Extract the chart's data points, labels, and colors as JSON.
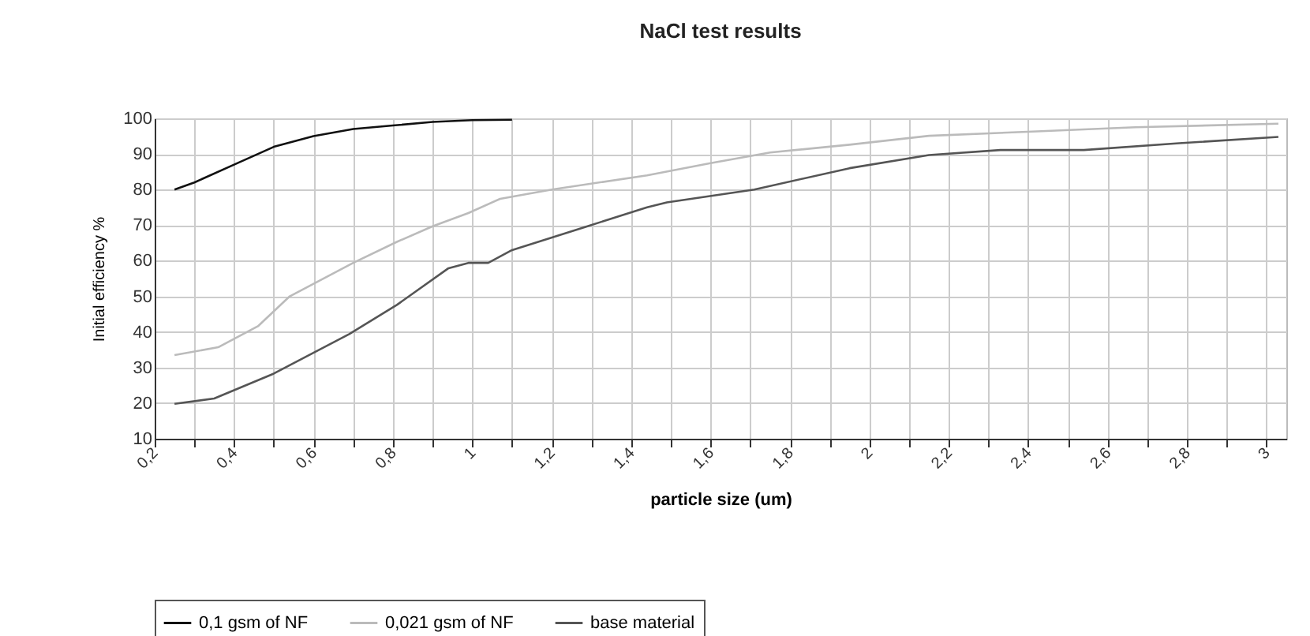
{
  "chart_data": {
    "type": "line",
    "title": "NaCl test results",
    "xlabel": "particle size (um)",
    "ylabel": "Initial efficiency %",
    "xlim": [
      0.2,
      3.05
    ],
    "ylim": [
      10,
      100
    ],
    "xticks": [
      {
        "value": 0.2,
        "label": "0,2"
      },
      {
        "value": 0.3,
        "label": null
      },
      {
        "value": 0.4,
        "label": "0,4"
      },
      {
        "value": 0.5,
        "label": null
      },
      {
        "value": 0.6,
        "label": "0,6"
      },
      {
        "value": 0.7,
        "label": null
      },
      {
        "value": 0.8,
        "label": "0,8"
      },
      {
        "value": 0.9,
        "label": null
      },
      {
        "value": 1,
        "label": "1"
      },
      {
        "value": 1.1,
        "label": null
      },
      {
        "value": 1.2,
        "label": "1,2"
      },
      {
        "value": 1.3,
        "label": null
      },
      {
        "value": 1.4,
        "label": "1,4"
      },
      {
        "value": 1.5,
        "label": null
      },
      {
        "value": 1.6,
        "label": "1,6"
      },
      {
        "value": 1.7,
        "label": null
      },
      {
        "value": 1.8,
        "label": "1,8"
      },
      {
        "value": 1.9,
        "label": null
      },
      {
        "value": 2,
        "label": "2"
      },
      {
        "value": 2.1,
        "label": null
      },
      {
        "value": 2.2,
        "label": "2,2"
      },
      {
        "value": 2.3,
        "label": null
      },
      {
        "value": 2.4,
        "label": "2,4"
      },
      {
        "value": 2.5,
        "label": null
      },
      {
        "value": 2.6,
        "label": "2,6"
      },
      {
        "value": 2.7,
        "label": null
      },
      {
        "value": 2.8,
        "label": "2,8"
      },
      {
        "value": 2.9,
        "label": null
      },
      {
        "value": 3,
        "label": "3"
      }
    ],
    "yticks": [
      10,
      20,
      30,
      40,
      50,
      60,
      70,
      80,
      90,
      100
    ],
    "grid": true,
    "legend": "bottom",
    "marker": "none",
    "line_style": "solid",
    "series": [
      {
        "name": "0,1 gsm of NF",
        "color": "#111111",
        "x": [
          0.25,
          0.3,
          0.4,
          0.5,
          0.6,
          0.7,
          0.8,
          0.9,
          1.0,
          1.1
        ],
        "values": [
          80,
          82,
          87,
          92,
          95,
          97,
          98,
          99,
          99.5,
          99.6
        ]
      },
      {
        "name": "0,021 gsm of NF",
        "color": "#bbbbbb",
        "x": [
          0.25,
          0.36,
          0.46,
          0.54,
          0.7,
          0.81,
          0.9,
          0.99,
          1.07,
          1.2,
          1.44,
          1.6,
          1.75,
          1.95,
          2.15,
          2.41,
          2.67,
          3.03
        ],
        "values": [
          33.5,
          35.7,
          41.6,
          50,
          59.4,
          65.3,
          69.7,
          73.4,
          77.4,
          80,
          84,
          87.4,
          90.4,
          92.6,
          95.1,
          96.3,
          97.5,
          98.5
        ]
      },
      {
        "name": "base material",
        "color": "#555555",
        "x": [
          0.25,
          0.35,
          0.5,
          0.69,
          0.81,
          0.94,
          0.99,
          1.04,
          1.1,
          1.29,
          1.44,
          1.49,
          1.71,
          1.95,
          2.15,
          2.33,
          2.54,
          2.78,
          3.03
        ],
        "values": [
          19.8,
          21.3,
          28.3,
          39.4,
          47.6,
          57.9,
          59.4,
          59.4,
          63,
          69.7,
          75,
          76.4,
          80,
          86,
          89.7,
          91.1,
          91.1,
          93,
          94.8
        ]
      }
    ]
  }
}
